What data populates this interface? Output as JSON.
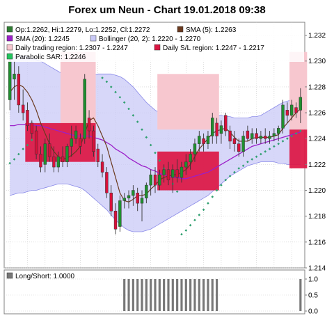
{
  "title": "Forex um Neun - Chart 19.01.2018 09:38",
  "colors": {
    "up": "#1f8f2e",
    "down": "#d8103a",
    "sma5": "#6b3a1f",
    "sma20": "#9b1fc9",
    "bollinger_fill": "#c9c9f7",
    "bollinger_line": "#8888e8",
    "sar": "#2f9f6f",
    "trading_region": "#f7c7cf",
    "sl_region": "#dc1643",
    "longshort": "#777777",
    "grid": "#cccccc"
  },
  "legend": [
    {
      "swatch": "#2e7d32",
      "text": "Op:1.2262, Hi:1.2279, Lo:1.2252, Cl:1.2272"
    },
    {
      "swatch": "#6b3a1f",
      "text": "SMA (5): 1.2263"
    },
    {
      "swatch": "#9b1fc9",
      "text": "SMA (20): 1.2245"
    },
    {
      "swatch": "#c9c9f7",
      "text": "Bollinger (20, 2): 1.2220 - 1.2270"
    },
    {
      "swatch": "#f7c7cf",
      "text": "Daily trading region: 1.2307 - 1.2247"
    },
    {
      "swatch": "#dc1643",
      "text": "Daily S/L region: 1.2247 - 1.2217"
    },
    {
      "swatch": "#22c55e",
      "text": "Parabolic SAR: 1.2246"
    }
  ],
  "longshort_label": "Long/Short: 1.0000",
  "chart_data": {
    "type": "candlestick",
    "y_axis": {
      "min": 1.214,
      "max": 1.233,
      "ticks": [
        "1.214",
        "1.216",
        "1.218",
        "1.220",
        "1.222",
        "1.224",
        "1.226",
        "1.228",
        "1.230",
        "1.232"
      ]
    },
    "lower_axis": {
      "min": 0,
      "max": 1,
      "ticks": [
        "0.0",
        "0.5",
        "1.0"
      ]
    },
    "grid": true,
    "candles": [
      {
        "o": 1.227,
        "h": 1.2312,
        "l": 1.2262,
        "c": 1.23
      },
      {
        "o": 1.2286,
        "h": 1.23,
        "l": 1.227,
        "c": 1.229
      },
      {
        "o": 1.229,
        "h": 1.2296,
        "l": 1.226,
        "c": 1.2266
      },
      {
        "o": 1.2266,
        "h": 1.2278,
        "l": 1.2254,
        "c": 1.226
      },
      {
        "o": 1.2262,
        "h": 1.2268,
        "l": 1.2246,
        "c": 1.225
      },
      {
        "o": 1.2252,
        "h": 1.2254,
        "l": 1.224,
        "c": 1.2244
      },
      {
        "o": 1.2246,
        "h": 1.225,
        "l": 1.2224,
        "c": 1.2228
      },
      {
        "o": 1.2228,
        "h": 1.2234,
        "l": 1.2214,
        "c": 1.2218
      },
      {
        "o": 1.222,
        "h": 1.224,
        "l": 1.2214,
        "c": 1.2236
      },
      {
        "o": 1.2236,
        "h": 1.2244,
        "l": 1.2222,
        "c": 1.2226
      },
      {
        "o": 1.2226,
        "h": 1.2234,
        "l": 1.2214,
        "c": 1.2218
      },
      {
        "o": 1.2218,
        "h": 1.223,
        "l": 1.2214,
        "c": 1.2226
      },
      {
        "o": 1.2226,
        "h": 1.2234,
        "l": 1.2218,
        "c": 1.2222
      },
      {
        "o": 1.2222,
        "h": 1.2236,
        "l": 1.2218,
        "c": 1.2234
      },
      {
        "o": 1.2234,
        "h": 1.225,
        "l": 1.2226,
        "c": 1.224
      },
      {
        "o": 1.224,
        "h": 1.225,
        "l": 1.2236,
        "c": 1.2246
      },
      {
        "o": 1.224,
        "h": 1.2244,
        "l": 1.2228,
        "c": 1.2234
      },
      {
        "o": 1.224,
        "h": 1.229,
        "l": 1.2236,
        "c": 1.2286
      },
      {
        "o": 1.2256,
        "h": 1.2262,
        "l": 1.224,
        "c": 1.2246
      },
      {
        "o": 1.2246,
        "h": 1.225,
        "l": 1.2226,
        "c": 1.223
      },
      {
        "o": 1.2232,
        "h": 1.2236,
        "l": 1.2218,
        "c": 1.2222
      },
      {
        "o": 1.2222,
        "h": 1.2228,
        "l": 1.221,
        "c": 1.2214
      },
      {
        "o": 1.2214,
        "h": 1.2218,
        "l": 1.2194,
        "c": 1.2198
      },
      {
        "o": 1.2198,
        "h": 1.2204,
        "l": 1.218,
        "c": 1.2184
      },
      {
        "o": 1.2184,
        "h": 1.219,
        "l": 1.2166,
        "c": 1.217
      },
      {
        "o": 1.2172,
        "h": 1.2196,
        "l": 1.2168,
        "c": 1.2192
      },
      {
        "o": 1.2192,
        "h": 1.2198,
        "l": 1.2186,
        "c": 1.2194
      },
      {
        "o": 1.2194,
        "h": 1.22,
        "l": 1.2186,
        "c": 1.2196
      },
      {
        "o": 1.2196,
        "h": 1.2204,
        "l": 1.2188,
        "c": 1.22
      },
      {
        "o": 1.2198,
        "h": 1.2202,
        "l": 1.2184,
        "c": 1.219
      },
      {
        "o": 1.219,
        "h": 1.22,
        "l": 1.2176,
        "c": 1.2194
      },
      {
        "o": 1.2194,
        "h": 1.2206,
        "l": 1.219,
        "c": 1.2204
      },
      {
        "o": 1.2204,
        "h": 1.2216,
        "l": 1.2196,
        "c": 1.2212
      },
      {
        "o": 1.2212,
        "h": 1.2218,
        "l": 1.2198,
        "c": 1.2204
      },
      {
        "o": 1.2204,
        "h": 1.2216,
        "l": 1.22,
        "c": 1.2212
      },
      {
        "o": 1.2212,
        "h": 1.222,
        "l": 1.2206,
        "c": 1.2216
      },
      {
        "o": 1.2216,
        "h": 1.2222,
        "l": 1.2204,
        "c": 1.2208
      },
      {
        "o": 1.221,
        "h": 1.222,
        "l": 1.2198,
        "c": 1.2216
      },
      {
        "o": 1.2216,
        "h": 1.2224,
        "l": 1.2206,
        "c": 1.221
      },
      {
        "o": 1.221,
        "h": 1.2222,
        "l": 1.2206,
        "c": 1.2218
      },
      {
        "o": 1.2218,
        "h": 1.2228,
        "l": 1.2212,
        "c": 1.2222
      },
      {
        "o": 1.2222,
        "h": 1.2232,
        "l": 1.2216,
        "c": 1.2228
      },
      {
        "o": 1.2228,
        "h": 1.224,
        "l": 1.2222,
        "c": 1.2236
      },
      {
        "o": 1.2236,
        "h": 1.2246,
        "l": 1.223,
        "c": 1.2242
      },
      {
        "o": 1.224,
        "h": 1.2244,
        "l": 1.223,
        "c": 1.2236
      },
      {
        "o": 1.2236,
        "h": 1.2246,
        "l": 1.2232,
        "c": 1.2242
      },
      {
        "o": 1.2242,
        "h": 1.226,
        "l": 1.2236,
        "c": 1.2256
      },
      {
        "o": 1.2252,
        "h": 1.2256,
        "l": 1.2236,
        "c": 1.2242
      },
      {
        "o": 1.2244,
        "h": 1.2254,
        "l": 1.2236,
        "c": 1.225
      },
      {
        "o": 1.2258,
        "h": 1.226,
        "l": 1.2242,
        "c": 1.2246
      },
      {
        "o": 1.2246,
        "h": 1.225,
        "l": 1.2232,
        "c": 1.2238
      },
      {
        "o": 1.224,
        "h": 1.2246,
        "l": 1.223,
        "c": 1.2236
      },
      {
        "o": 1.2236,
        "h": 1.224,
        "l": 1.2226,
        "c": 1.223
      },
      {
        "o": 1.223,
        "h": 1.2246,
        "l": 1.2226,
        "c": 1.2242
      },
      {
        "o": 1.2246,
        "h": 1.225,
        "l": 1.2238,
        "c": 1.224
      },
      {
        "o": 1.224,
        "h": 1.2248,
        "l": 1.2236,
        "c": 1.2244
      },
      {
        "o": 1.2244,
        "h": 1.2248,
        "l": 1.2236,
        "c": 1.224
      },
      {
        "o": 1.224,
        "h": 1.2246,
        "l": 1.2236,
        "c": 1.2242
      },
      {
        "o": 1.2242,
        "h": 1.2248,
        "l": 1.2236,
        "c": 1.224
      },
      {
        "o": 1.224,
        "h": 1.2246,
        "l": 1.2236,
        "c": 1.2242
      },
      {
        "o": 1.2242,
        "h": 1.2248,
        "l": 1.2238,
        "c": 1.2244
      },
      {
        "o": 1.2244,
        "h": 1.225,
        "l": 1.2238,
        "c": 1.2248
      },
      {
        "o": 1.2248,
        "h": 1.227,
        "l": 1.2244,
        "c": 1.2266
      },
      {
        "o": 1.2262,
        "h": 1.2268,
        "l": 1.2252,
        "c": 1.2258
      },
      {
        "o": 1.2258,
        "h": 1.227,
        "l": 1.2254,
        "c": 1.2266
      },
      {
        "o": 1.2264,
        "h": 1.2268,
        "l": 1.2256,
        "c": 1.226
      },
      {
        "o": 1.2262,
        "h": 1.2279,
        "l": 1.2252,
        "c": 1.2272
      }
    ],
    "sma5": [
      1.2276,
      1.228,
      1.2282,
      1.228,
      1.2276,
      1.227,
      1.2262,
      1.2252,
      1.2244,
      1.2236,
      1.223,
      1.2226,
      1.2224,
      1.2225,
      1.2227,
      1.223,
      1.2234,
      1.2244,
      1.2254,
      1.2256,
      1.225,
      1.2242,
      1.2234,
      1.2222,
      1.221,
      1.2198,
      1.2192,
      1.2191,
      1.2193,
      1.2196,
      1.2196,
      1.2197,
      1.2201,
      1.2204,
      1.2208,
      1.221,
      1.2211,
      1.2212,
      1.2212,
      1.2214,
      1.2216,
      1.222,
      1.2226,
      1.2232,
      1.2236,
      1.224,
      1.2244,
      1.2246,
      1.2247,
      1.2248,
      1.2245,
      1.2241,
      1.2238,
      1.2238,
      1.2238,
      1.224,
      1.2241,
      1.2241,
      1.2241,
      1.2241,
      1.2242,
      1.2243,
      1.2248,
      1.2252,
      1.2256,
      1.226,
      1.2263
    ],
    "sma20": [
      1.225,
      1.225,
      1.2251,
      1.2251,
      1.2251,
      1.2251,
      1.225,
      1.225,
      1.2249,
      1.2248,
      1.2247,
      1.2246,
      1.2245,
      1.2244,
      1.2243,
      1.2242,
      1.2242,
      1.2242,
      1.2242,
      1.2241,
      1.224,
      1.2239,
      1.2237,
      1.2235,
      1.2232,
      1.223,
      1.2228,
      1.2225,
      1.2223,
      1.2221,
      1.2219,
      1.2218,
      1.2216,
      1.2215,
      1.2213,
      1.2212,
      1.2211,
      1.221,
      1.221,
      1.2209,
      1.2209,
      1.221,
      1.2211,
      1.2212,
      1.2213,
      1.2214,
      1.2216,
      1.2218,
      1.222,
      1.2222,
      1.2224,
      1.2226,
      1.2228,
      1.223,
      1.2232,
      1.2234,
      1.2235,
      1.2236,
      1.2237,
      1.2238,
      1.2239,
      1.224,
      1.2241,
      1.2242,
      1.2243,
      1.2244,
      1.2245
    ],
    "boll_upper": [
      1.2302,
      1.2303,
      1.2304,
      1.2304,
      1.2303,
      1.2302,
      1.2301,
      1.23,
      1.2298,
      1.2296,
      1.2294,
      1.2292,
      1.229,
      1.2289,
      1.2288,
      1.2287,
      1.2286,
      1.2287,
      1.2288,
      1.2289,
      1.229,
      1.229,
      1.229,
      1.229,
      1.2289,
      1.2288,
      1.2286,
      1.2283,
      1.228,
      1.2276,
      1.2272,
      1.2268,
      1.2265,
      1.2262,
      1.226,
      1.2258,
      1.2257,
      1.2257,
      1.2257,
      1.2258,
      1.2258,
      1.2257,
      1.2256,
      1.2256,
      1.2256,
      1.2257,
      1.2258,
      1.2258,
      1.2258,
      1.2257,
      1.2257,
      1.2256,
      1.2256,
      1.2256,
      1.2256,
      1.2257,
      1.2257,
      1.2258,
      1.226,
      1.2262,
      1.2264,
      1.2266,
      1.2268,
      1.2269,
      1.227,
      1.227,
      1.227
    ],
    "boll_lower": [
      1.2196,
      1.2197,
      1.2198,
      1.2198,
      1.2199,
      1.22,
      1.22,
      1.2201,
      1.2202,
      1.2203,
      1.2204,
      1.2205,
      1.2205,
      1.2205,
      1.2204,
      1.2203,
      1.2202,
      1.22,
      1.2197,
      1.2194,
      1.2191,
      1.2188,
      1.2185,
      1.2181,
      1.2177,
      1.2174,
      1.2171,
      1.2169,
      1.2168,
      1.2168,
      1.2168,
      1.2169,
      1.217,
      1.2172,
      1.2174,
      1.2176,
      1.2178,
      1.218,
      1.2182,
      1.2184,
      1.2186,
      1.2188,
      1.219,
      1.2192,
      1.2194,
      1.2196,
      1.2199,
      1.2202,
      1.2205,
      1.2208,
      1.2211,
      1.2213,
      1.2215,
      1.2217,
      1.2219,
      1.222,
      1.2221,
      1.2222,
      1.2222,
      1.2222,
      1.2222,
      1.2221,
      1.2221,
      1.222,
      1.222,
      1.222,
      1.222
    ],
    "sar": [
      {
        "i": 0,
        "v": 1.2221
      },
      {
        "i": 1,
        "v": 1.2224
      },
      {
        "i": 2,
        "v": 1.2228
      },
      {
        "i": 3,
        "v": 1.2232
      },
      {
        "i": 4,
        "v": 1.2235
      },
      {
        "i": 5,
        "v": 1.2239
      },
      {
        "i": 6,
        "v": 1.2242
      },
      {
        "i": 21,
        "v": 1.2287
      },
      {
        "i": 22,
        "v": 1.2284
      },
      {
        "i": 23,
        "v": 1.228
      },
      {
        "i": 24,
        "v": 1.2276
      },
      {
        "i": 25,
        "v": 1.2272
      },
      {
        "i": 26,
        "v": 1.2268
      },
      {
        "i": 27,
        "v": 1.2263
      },
      {
        "i": 28,
        "v": 1.2258
      },
      {
        "i": 29,
        "v": 1.2253
      },
      {
        "i": 30,
        "v": 1.2247
      },
      {
        "i": 31,
        "v": 1.2241
      },
      {
        "i": 32,
        "v": 1.2235
      },
      {
        "i": 33,
        "v": 1.2229
      },
      {
        "i": 34,
        "v": 1.2223
      },
      {
        "i": 35,
        "v": 1.2217
      },
      {
        "i": 36,
        "v": 1.2211
      },
      {
        "i": 37,
        "v": 1.2205
      },
      {
        "i": 38,
        "v": 1.2199
      },
      {
        "i": 39,
        "v": 1.2166
      },
      {
        "i": 40,
        "v": 1.2169
      },
      {
        "i": 41,
        "v": 1.2173
      },
      {
        "i": 42,
        "v": 1.2177
      },
      {
        "i": 43,
        "v": 1.2181
      },
      {
        "i": 44,
        "v": 1.2185
      },
      {
        "i": 45,
        "v": 1.219
      },
      {
        "i": 46,
        "v": 1.2195
      },
      {
        "i": 47,
        "v": 1.22
      },
      {
        "i": 48,
        "v": 1.2204
      },
      {
        "i": 49,
        "v": 1.2208
      },
      {
        "i": 50,
        "v": 1.2211
      },
      {
        "i": 51,
        "v": 1.2214
      },
      {
        "i": 52,
        "v": 1.2217
      },
      {
        "i": 53,
        "v": 1.2219
      },
      {
        "i": 54,
        "v": 1.2222
      },
      {
        "i": 55,
        "v": 1.2224
      },
      {
        "i": 56,
        "v": 1.2226
      },
      {
        "i": 57,
        "v": 1.2228
      },
      {
        "i": 58,
        "v": 1.223
      },
      {
        "i": 59,
        "v": 1.2232
      },
      {
        "i": 60,
        "v": 1.2234
      },
      {
        "i": 61,
        "v": 1.2236
      },
      {
        "i": 62,
        "v": 1.2238
      },
      {
        "i": 63,
        "v": 1.224
      },
      {
        "i": 64,
        "v": 1.2242
      },
      {
        "i": 65,
        "v": 1.2244
      },
      {
        "i": 66,
        "v": 1.2246
      }
    ],
    "trading_regions": [
      {
        "from": 12,
        "to": 19,
        "low": 1.2247,
        "high": 1.2307
      },
      {
        "from": 34,
        "to": 47,
        "low": 1.2247,
        "high": 1.229
      },
      {
        "from": 64,
        "to": 67,
        "low": 1.2247,
        "high": 1.2307
      }
    ],
    "sl_regions": [
      {
        "from": 4,
        "to": 19,
        "low": 1.2222,
        "high": 1.2252
      },
      {
        "from": 34,
        "to": 47,
        "low": 1.22,
        "high": 1.223
      },
      {
        "from": 64,
        "to": 67,
        "low": 1.2217,
        "high": 1.2247
      }
    ],
    "longshort": [
      0,
      0,
      0,
      0,
      0,
      0,
      0,
      0,
      0,
      0,
      0,
      0,
      0,
      0,
      0,
      0,
      0,
      0,
      0,
      0,
      0,
      0,
      0,
      0,
      0,
      0,
      1,
      1,
      1,
      1,
      1,
      1,
      1,
      1,
      1,
      1,
      1,
      1,
      1,
      1,
      1,
      1,
      1,
      1,
      1,
      1,
      1,
      1,
      0,
      0,
      0,
      0,
      0,
      0,
      0,
      0,
      0,
      0,
      0,
      0,
      0,
      0,
      0,
      0,
      0,
      0,
      1
    ]
  }
}
